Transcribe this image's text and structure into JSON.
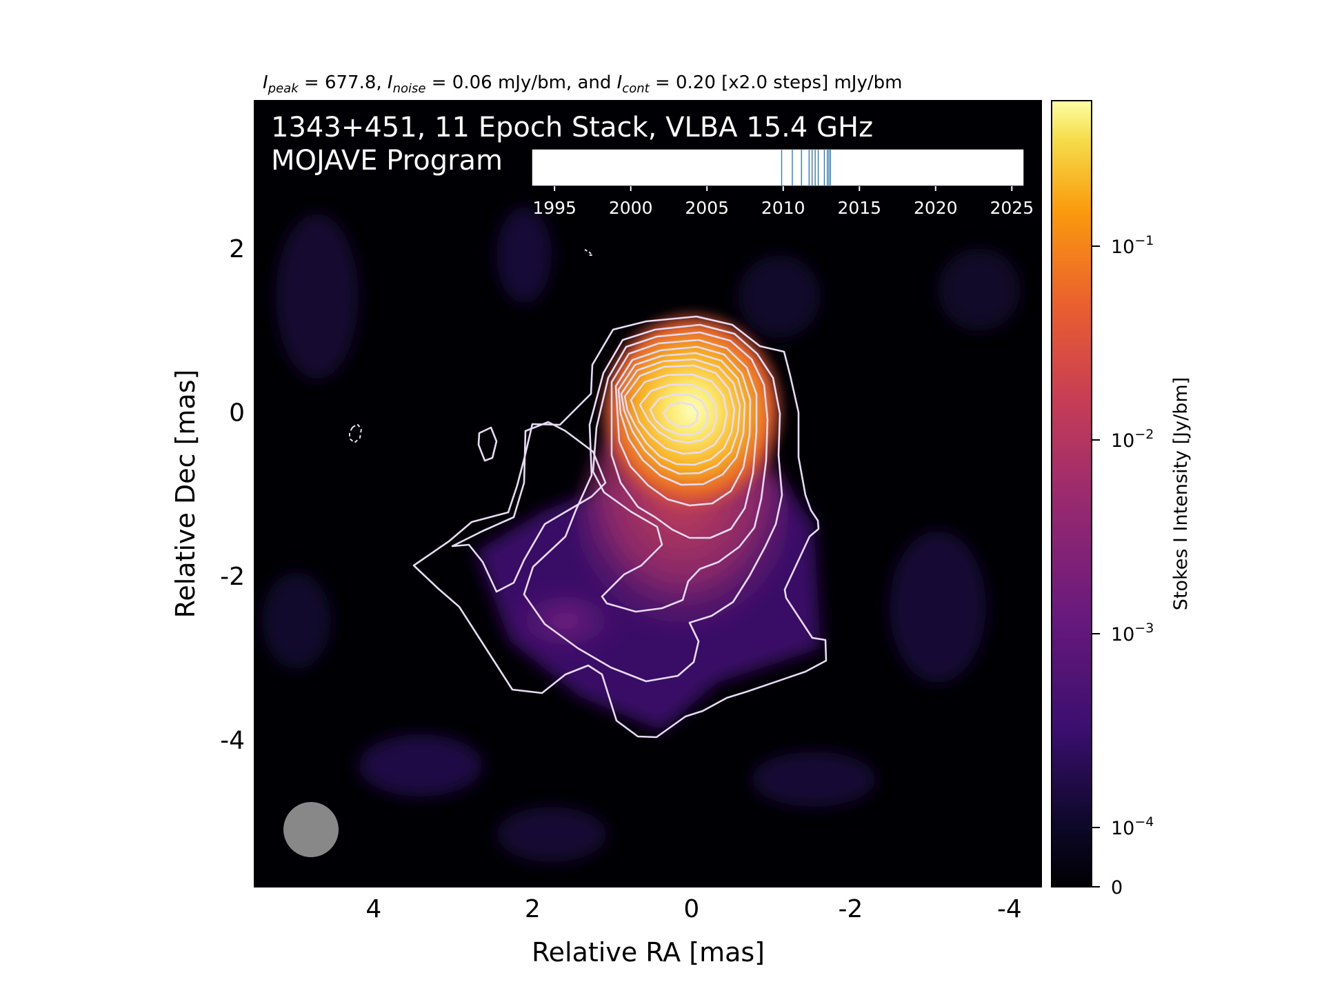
{
  "header": {
    "peak_sym": "I",
    "peak_sub": "peak",
    "peak_text": " = 677.8, ",
    "noise_sym": "I",
    "noise_sub": "noise",
    "noise_text": " = 0.06 mJy/bm, and ",
    "cont_sym": "I",
    "cont_sub": "cont",
    "cont_text": " = 0.20 [x2.0 steps] mJy/bm"
  },
  "map": {
    "title_line1": "1343+451, 11 Epoch Stack, VLBA 15.4 GHz",
    "title_line2": "MOJAVE Program"
  },
  "chart_data": {
    "type": "heatmap",
    "xlabel": "Relative RA [mas]",
    "ylabel": "Relative Dec [mas]",
    "xlim": [
      5.5,
      -4.4
    ],
    "ylim": [
      -5.8,
      3.8
    ],
    "xticks": [
      4,
      2,
      0,
      -2,
      -4
    ],
    "xtick_labels": [
      "4",
      "2",
      "0",
      "-2",
      "-4"
    ],
    "yticks": [
      2,
      0,
      -2,
      -4
    ],
    "ytick_labels": [
      "2",
      "0",
      "-2",
      "-4"
    ],
    "peak_intensity": 677.8,
    "noise": 0.06,
    "contour_base_mJy": 0.2,
    "contour_step_factor": 2.0,
    "contour_count": 12,
    "colormap": "inferno",
    "beam": {
      "ra": 4.8,
      "dec": -5.2,
      "diameter_mas": 0.7
    },
    "colorbar": {
      "label": "Stokes I Intensity [Jy/bm]",
      "scale": "log",
      "ticks": [
        0.1,
        0.01,
        0.001,
        0.0001,
        0
      ],
      "tick_bases": [
        "10",
        "10",
        "10",
        "10",
        "0"
      ],
      "tick_exps": [
        "−1",
        "−2",
        "−3",
        "−4",
        ""
      ]
    },
    "epoch_inset": {
      "xlim": [
        1993.5,
        2025.8
      ],
      "ticks": [
        1995,
        2000,
        2005,
        2010,
        2015,
        2020,
        2025
      ],
      "epochs": [
        2009.9,
        2010.6,
        2011.2,
        2011.7,
        2011.9,
        2012.1,
        2012.3,
        2012.7,
        2012.9,
        2013.0,
        2013.1
      ]
    },
    "colors": {
      "contour": "#e8dcf5",
      "epoch_line": "#1f77b4",
      "beam": "#888888",
      "background": "#000000"
    }
  }
}
